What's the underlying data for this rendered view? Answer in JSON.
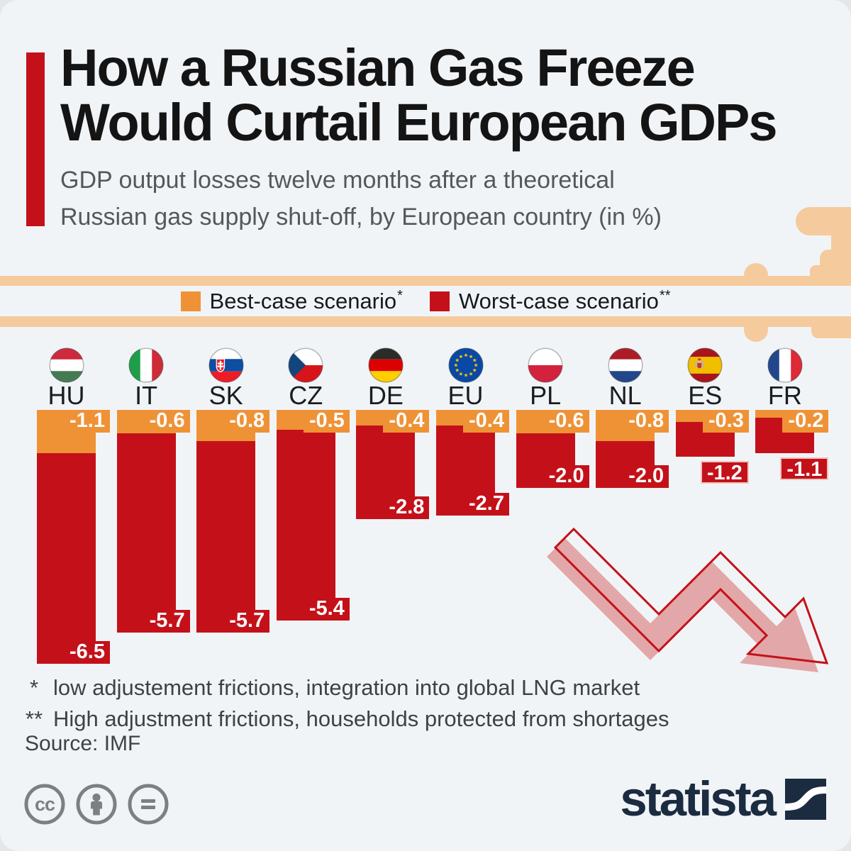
{
  "header": {
    "title_line1": "How a Russian Gas Freeze",
    "title_line2": "Would Curtail European GDPs",
    "subtitle_line1": "GDP output losses twelve months after a theoretical",
    "subtitle_line2": "Russian gas supply shut-off, by European country (in %)"
  },
  "legend": {
    "best": {
      "label": "Best-case scenario",
      "sup": "*",
      "color": "#EF9236"
    },
    "worst": {
      "label": "Worst-case scenario",
      "sup": "**",
      "color": "#C41119"
    }
  },
  "chart_data": {
    "type": "bar",
    "orientation": "vertical-downward",
    "unit": "% GDP output loss",
    "categories": [
      "HU",
      "IT",
      "SK",
      "CZ",
      "DE",
      "EU",
      "PL",
      "NL",
      "ES",
      "FR"
    ],
    "series": [
      {
        "name": "Best-case scenario",
        "color": "#EF9236",
        "values": [
          -1.1,
          -0.6,
          -0.8,
          -0.5,
          -0.4,
          -0.4,
          -0.6,
          -0.8,
          -0.3,
          -0.2
        ]
      },
      {
        "name": "Worst-case scenario",
        "color": "#C41119",
        "values": [
          -6.5,
          -5.7,
          -5.7,
          -5.4,
          -2.8,
          -2.7,
          -2.0,
          -2.0,
          -1.2,
          -1.1
        ]
      }
    ],
    "value_labels_shown": true,
    "axis": {
      "hidden": true,
      "baseline": 0,
      "min": -7
    }
  },
  "footnotes": [
    {
      "marker": "*",
      "text": "low adjustement frictions, integration into global LNG market"
    },
    {
      "marker": "**",
      "text": "High adjustment frictions, households protected from shortages"
    }
  ],
  "source": "Source: IMF",
  "branding": {
    "logo_text": "statista",
    "cc_badges": [
      "cc",
      "attribution",
      "no-derivatives"
    ],
    "logo_color": "#1B2B40"
  }
}
